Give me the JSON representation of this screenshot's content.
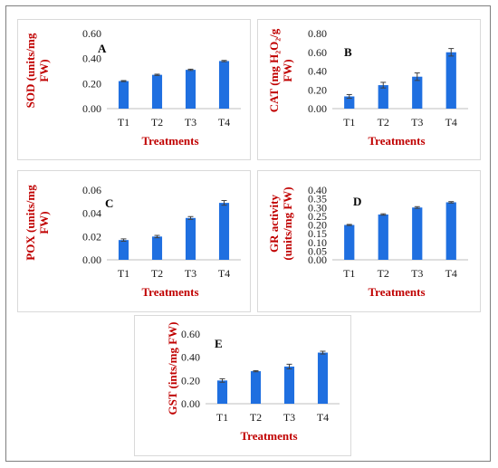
{
  "colors": {
    "bar": "#1f6fe0",
    "label": "#c00000",
    "axis": "#bfbfbf"
  },
  "chart_data": [
    {
      "type": "bar",
      "panel_label": "A",
      "ylabel_lines": [
        "SOD (units/mg",
        "FW)"
      ],
      "xlabel": "Treatments",
      "categories": [
        "T1",
        "T2",
        "T3",
        "T4"
      ],
      "values": [
        0.22,
        0.27,
        0.31,
        0.38
      ],
      "errors": [
        0.004,
        0.005,
        0.005,
        0.005
      ],
      "ylim": [
        0,
        0.6
      ],
      "yticks": [
        "0.00",
        "0.20",
        "0.40",
        "0.60"
      ],
      "grid": false
    },
    {
      "type": "bar",
      "panel_label": "B",
      "ylabel_lines": [
        "CAT (mg H₂O₂/g",
        "FW)"
      ],
      "xlabel": "Treatments",
      "categories": [
        "T1",
        "T2",
        "T3",
        "T4"
      ],
      "values": [
        0.13,
        0.25,
        0.34,
        0.6
      ],
      "errors": [
        0.02,
        0.03,
        0.04,
        0.04
      ],
      "ylim": [
        0,
        0.8
      ],
      "yticks": [
        "0.00",
        "0.20",
        "0.40",
        "0.60",
        "0.80"
      ],
      "grid": false
    },
    {
      "type": "bar",
      "panel_label": "C",
      "ylabel_lines": [
        "POX (units/mg",
        "FW)"
      ],
      "xlabel": "Treatments",
      "categories": [
        "T1",
        "T2",
        "T3",
        "T4"
      ],
      "values": [
        0.017,
        0.02,
        0.036,
        0.049
      ],
      "errors": [
        0.001,
        0.001,
        0.0012,
        0.002
      ],
      "ylim": [
        0,
        0.06
      ],
      "yticks": [
        "0.00",
        "0.02",
        "0.04",
        "0.06"
      ],
      "grid": false
    },
    {
      "type": "bar",
      "panel_label": "D",
      "ylabel_lines": [
        "GR activity",
        "(units/mg FW)"
      ],
      "xlabel": "Treatments",
      "categories": [
        "T1",
        "T2",
        "T3",
        "T4"
      ],
      "values": [
        0.2,
        0.26,
        0.3,
        0.33
      ],
      "errors": [
        0.003,
        0.004,
        0.005,
        0.004
      ],
      "ylim": [
        0,
        0.4
      ],
      "yticks": [
        "0.00",
        "0.05",
        "0.10",
        "0.15",
        "0.20",
        "0.25",
        "0.30",
        "0.35",
        "0.40"
      ],
      "grid": false
    },
    {
      "type": "bar",
      "panel_label": "E",
      "ylabel_lines": [
        "GST (ints/mg FW)"
      ],
      "xlabel": "Treatments",
      "categories": [
        "T1",
        "T2",
        "T3",
        "T4"
      ],
      "values": [
        0.2,
        0.28,
        0.32,
        0.44
      ],
      "errors": [
        0.015,
        0.005,
        0.02,
        0.012
      ],
      "ylim": [
        0,
        0.6
      ],
      "yticks": [
        "0.00",
        "0.20",
        "0.40",
        "0.60"
      ],
      "grid": false
    }
  ]
}
